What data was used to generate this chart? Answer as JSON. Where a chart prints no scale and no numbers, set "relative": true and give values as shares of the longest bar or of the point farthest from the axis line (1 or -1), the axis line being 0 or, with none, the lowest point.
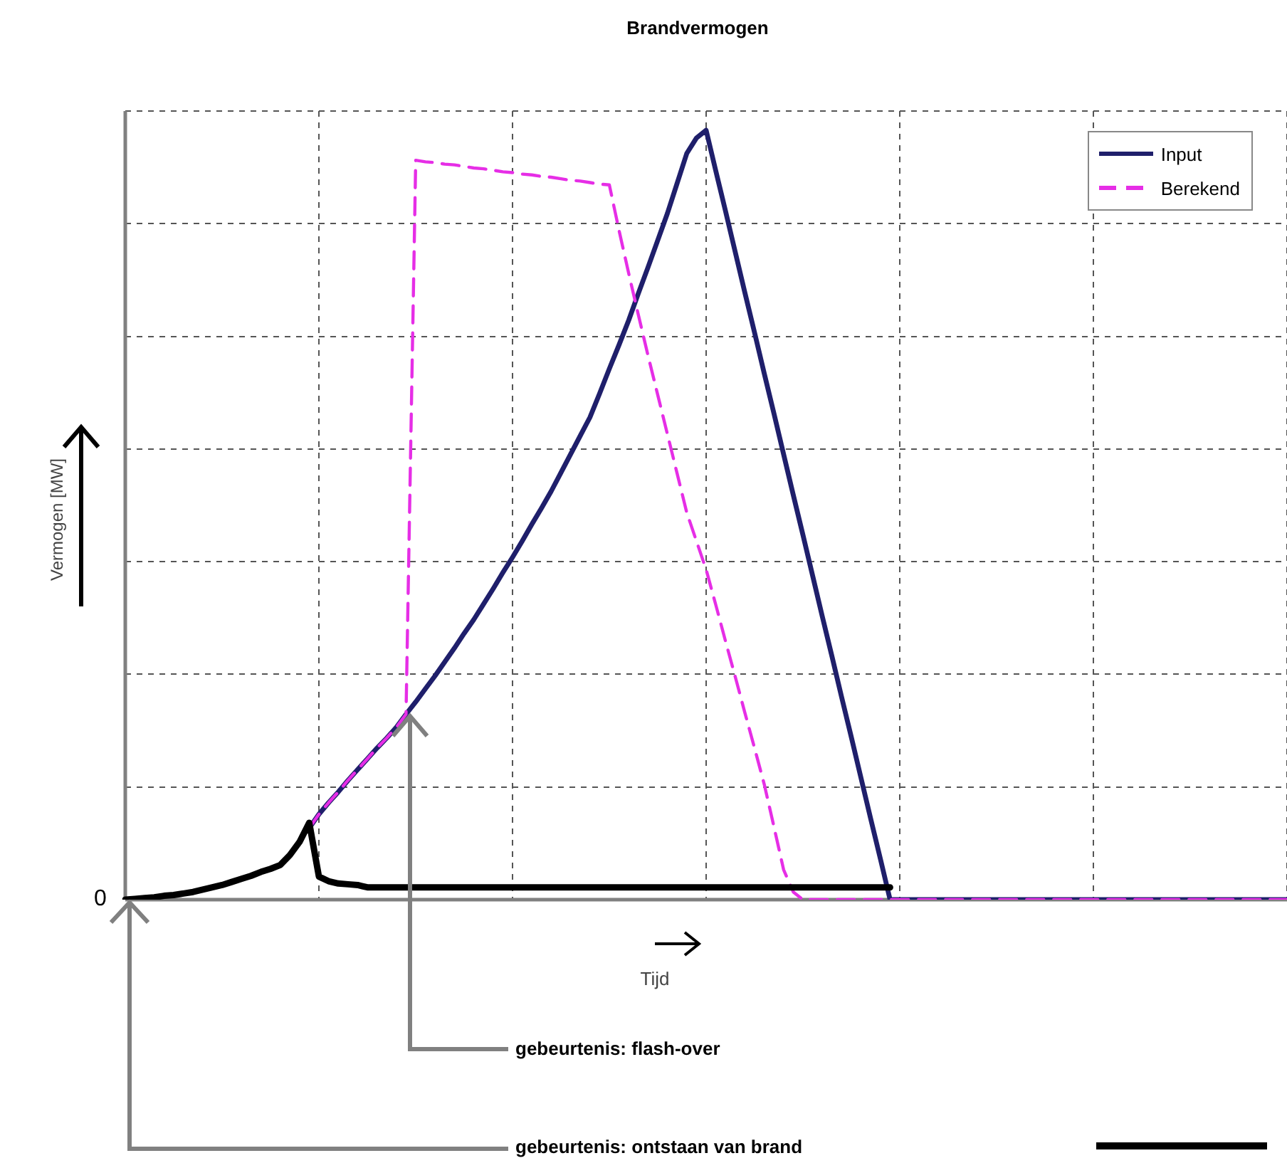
{
  "chart_data": {
    "type": "line",
    "title": "Brandvermogen",
    "xlabel": "Tijd",
    "ylabel": "Vermogen [MW]",
    "relative": true,
    "grid": true,
    "legend": "top right",
    "marker": "none",
    "categories": [
      null,
      null,
      null,
      null,
      null,
      null,
      null,
      null,
      null,
      null,
      null,
      null,
      null,
      null,
      null,
      null,
      null,
      null,
      null,
      null,
      null,
      null,
      null,
      null,
      null,
      null,
      null,
      null,
      null,
      null,
      null,
      null,
      null,
      null,
      null,
      null,
      null,
      null,
      null,
      null,
      null,
      null,
      null,
      null,
      null,
      null,
      null,
      null,
      null,
      null,
      null,
      null,
      null,
      null,
      null,
      null,
      null,
      null,
      null,
      null,
      null,
      null,
      null,
      null,
      null,
      null,
      null,
      null,
      null,
      null,
      null,
      null,
      null,
      null,
      null,
      null,
      null,
      null,
      null,
      null,
      null,
      null,
      null,
      null,
      null,
      null,
      null,
      null,
      null,
      null,
      null,
      null,
      null,
      null,
      null,
      null,
      null,
      null,
      null,
      null,
      null,
      null,
      null,
      null,
      null,
      null,
      null,
      null,
      null,
      null,
      null,
      null,
      null,
      null,
      null,
      null,
      null,
      null,
      null,
      null,
      null
    ],
    "series": [
      {
        "name": "Input",
        "color": "#1f1f6b",
        "line_style": "solid",
        "values": [
          null,
          null,
          null,
          null,
          null,
          null,
          null,
          null,
          null,
          null,
          null,
          null,
          null,
          null,
          null,
          null,
          null,
          null,
          null,
          0.093,
          0.111,
          0.126,
          0.14,
          0.155,
          0.169,
          0.183,
          0.197,
          0.21,
          0.224,
          0.241,
          0.257,
          0.274,
          0.291,
          0.309,
          0.327,
          0.346,
          0.364,
          0.384,
          0.404,
          0.425,
          0.445,
          0.466,
          0.488,
          0.509,
          0.531,
          0.555,
          0.579,
          0.603,
          0.627,
          0.658,
          0.69,
          0.721,
          0.753,
          0.788,
          0.822,
          0.857,
          0.892,
          0.931,
          0.97,
          0.99,
          1,
          0.947,
          0.895,
          0.842,
          0.789,
          0.737,
          0.684,
          0.632,
          0.579,
          0.526,
          0.474,
          0.421,
          0.368,
          0.316,
          0.263,
          0.211,
          0.158,
          0.105,
          0.053,
          0,
          0,
          0,
          0,
          0,
          0,
          0,
          0,
          0,
          0,
          0,
          0,
          0,
          0,
          0,
          0,
          0,
          0,
          0,
          0,
          0,
          0,
          0,
          0,
          0,
          0,
          0,
          0,
          0,
          0,
          0,
          0,
          0,
          0,
          0,
          0,
          0,
          0,
          0,
          0,
          0,
          0
        ]
      },
      {
        "name": "Berekend",
        "color": "#e62ee6",
        "line_style": "dashed",
        "values": [
          null,
          null,
          null,
          null,
          null,
          null,
          null,
          null,
          null,
          null,
          null,
          null,
          null,
          null,
          null,
          null,
          null,
          null,
          null,
          0.093,
          0.111,
          0.126,
          0.14,
          0.155,
          0.169,
          0.183,
          0.197,
          0.21,
          0.224,
          0.241,
          0.961,
          0.959,
          0.958,
          0.956,
          0.955,
          0.953,
          0.951,
          0.95,
          0.948,
          0.946,
          0.945,
          0.943,
          0.942,
          0.94,
          0.939,
          0.937,
          0.935,
          0.934,
          0.932,
          0.93,
          0.929,
          0.87,
          0.814,
          0.76,
          0.707,
          0.656,
          0.605,
          0.554,
          0.503,
          0.466,
          0.429,
          0.383,
          0.336,
          0.29,
          0.243,
          0.197,
          0.15,
          0.095,
          0.039,
          0.01,
          0,
          0,
          0,
          0,
          0,
          0,
          0,
          0,
          0,
          0,
          0,
          0,
          0,
          0,
          0,
          0,
          0,
          0,
          0,
          0,
          0,
          0,
          0,
          0,
          0,
          0,
          0,
          0,
          0,
          0,
          0,
          0,
          0,
          0,
          0,
          0,
          0,
          0,
          0,
          0,
          0,
          0,
          0,
          0,
          0,
          0,
          0,
          0,
          0,
          0,
          0
        ]
      },
      {
        "color": "#000000",
        "line_style": "solid",
        "values": [
          0,
          0.001,
          0.002,
          0.003,
          0.005,
          0.006,
          0.008,
          0.01,
          0.013,
          0.016,
          0.019,
          0.023,
          0.027,
          0.031,
          0.036,
          0.04,
          0.045,
          0.058,
          0.075,
          0.1,
          0.03,
          0.024,
          0.021,
          0.02,
          0.019,
          0.016,
          0.016,
          0.016,
          0.016,
          0.016,
          0.016,
          0.016,
          0.016,
          0.016,
          0.016,
          0.016,
          0.016,
          0.016,
          0.016,
          0.016,
          0.016,
          0.016,
          0.016,
          0.016,
          0.016,
          0.016,
          0.016,
          0.016,
          0.016,
          0.016,
          0.016,
          0.016,
          0.016,
          0.016,
          0.016,
          0.016,
          0.016,
          0.016,
          0.016,
          0.016,
          0.016,
          0.016,
          0.016,
          0.016,
          0.016,
          0.016,
          0.016,
          0.016,
          0.016,
          0.016,
          0.016,
          0.016,
          0.016,
          0.016,
          0.016,
          0.016,
          0.016,
          0.016,
          0.016,
          0.016,
          null,
          null,
          null,
          null,
          null,
          null,
          null,
          null,
          null,
          null,
          null,
          null,
          null,
          null,
          null,
          null,
          null,
          null,
          null,
          null,
          null,
          null,
          null,
          null,
          null,
          null,
          null,
          null,
          null,
          null,
          null,
          null,
          null,
          null,
          null,
          null,
          null,
          null,
          null,
          null,
          null
        ]
      }
    ],
    "annotations": [
      "0",
      "gebeurtenis: flash-over",
      "gebeurtenis: ontstaan van brand"
    ]
  }
}
